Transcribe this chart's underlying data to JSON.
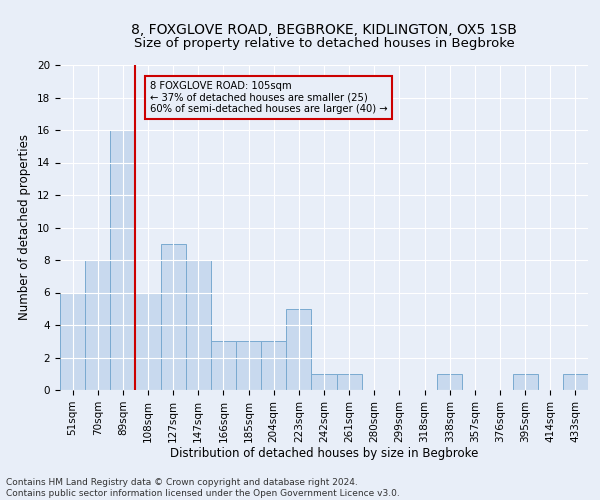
{
  "title": "8, FOXGLOVE ROAD, BEGBROKE, KIDLINGTON, OX5 1SB",
  "subtitle": "Size of property relative to detached houses in Begbroke",
  "xlabel": "Distribution of detached houses by size in Begbroke",
  "ylabel": "Number of detached properties",
  "categories": [
    "51sqm",
    "70sqm",
    "89sqm",
    "108sqm",
    "127sqm",
    "147sqm",
    "166sqm",
    "185sqm",
    "204sqm",
    "223sqm",
    "242sqm",
    "261sqm",
    "280sqm",
    "299sqm",
    "318sqm",
    "338sqm",
    "357sqm",
    "376sqm",
    "395sqm",
    "414sqm",
    "433sqm"
  ],
  "values": [
    6,
    8,
    16,
    6,
    9,
    8,
    3,
    3,
    3,
    5,
    1,
    1,
    0,
    0,
    0,
    1,
    0,
    0,
    1,
    0,
    1
  ],
  "bar_color": "#c8d9ee",
  "bar_edge_color": "#7aaad0",
  "vline_color": "#cc0000",
  "vline_index": 3,
  "ylim": [
    0,
    20
  ],
  "yticks": [
    0,
    2,
    4,
    6,
    8,
    10,
    12,
    14,
    16,
    18,
    20
  ],
  "annotation_line1": "8 FOXGLOVE ROAD: 105sqm",
  "annotation_line2": "← 37% of detached houses are smaller (25)",
  "annotation_line3": "60% of semi-detached houses are larger (40) →",
  "annotation_box_color": "#cc0000",
  "footer_line1": "Contains HM Land Registry data © Crown copyright and database right 2024.",
  "footer_line2": "Contains public sector information licensed under the Open Government Licence v3.0.",
  "bg_color": "#e8eef8",
  "grid_color": "#ffffff",
  "title_fontsize": 10,
  "xlabel_fontsize": 8.5,
  "ylabel_fontsize": 8.5,
  "tick_fontsize": 7.5,
  "footer_fontsize": 6.5
}
